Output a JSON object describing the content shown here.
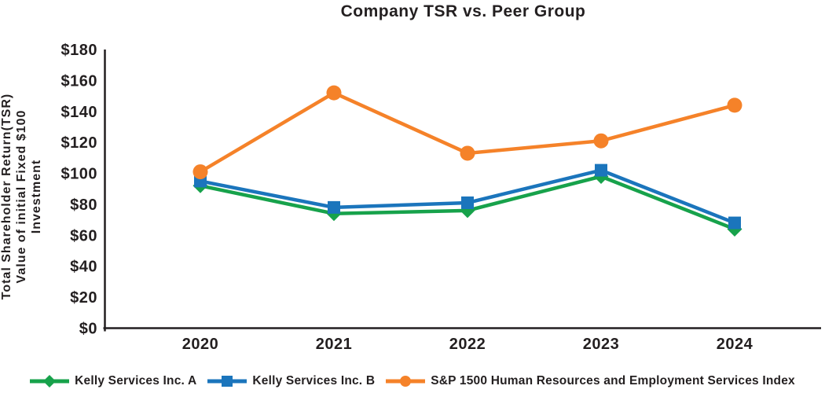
{
  "chart_data": {
    "type": "line",
    "title": "Company TSR vs. Peer Group",
    "ylabel_lines": [
      "Total Shareholder Return(TSR)",
      "Value of initial Fixed $100",
      "Investment"
    ],
    "categories": [
      "2020",
      "2021",
      "2022",
      "2023",
      "2024"
    ],
    "series": [
      {
        "name": "Kelly Services Inc. A",
        "marker": "diamond",
        "color": "#17A24B",
        "values": [
          92,
          74,
          76,
          98,
          64
        ]
      },
      {
        "name": "Kelly Services Inc. B",
        "marker": "square",
        "color": "#1B75BC",
        "values": [
          95,
          78,
          81,
          102,
          68
        ]
      },
      {
        "name": "S&P 1500 Human Resources and Employment Services Index",
        "marker": "circle",
        "color": "#F58229",
        "values": [
          101,
          152,
          113,
          121,
          144
        ]
      }
    ],
    "ylim": [
      0,
      180
    ],
    "ytick_step": 20,
    "ytick_labels": [
      "$0",
      "$20",
      "$40",
      "$60",
      "$80",
      "$100",
      "$120",
      "$140",
      "$160",
      "$180"
    ],
    "xlabel": "",
    "grid": false,
    "legend_position": "bottom",
    "axis_color": "#231F20",
    "text_color": "#231F20",
    "background_color": "#FFFFFF"
  }
}
